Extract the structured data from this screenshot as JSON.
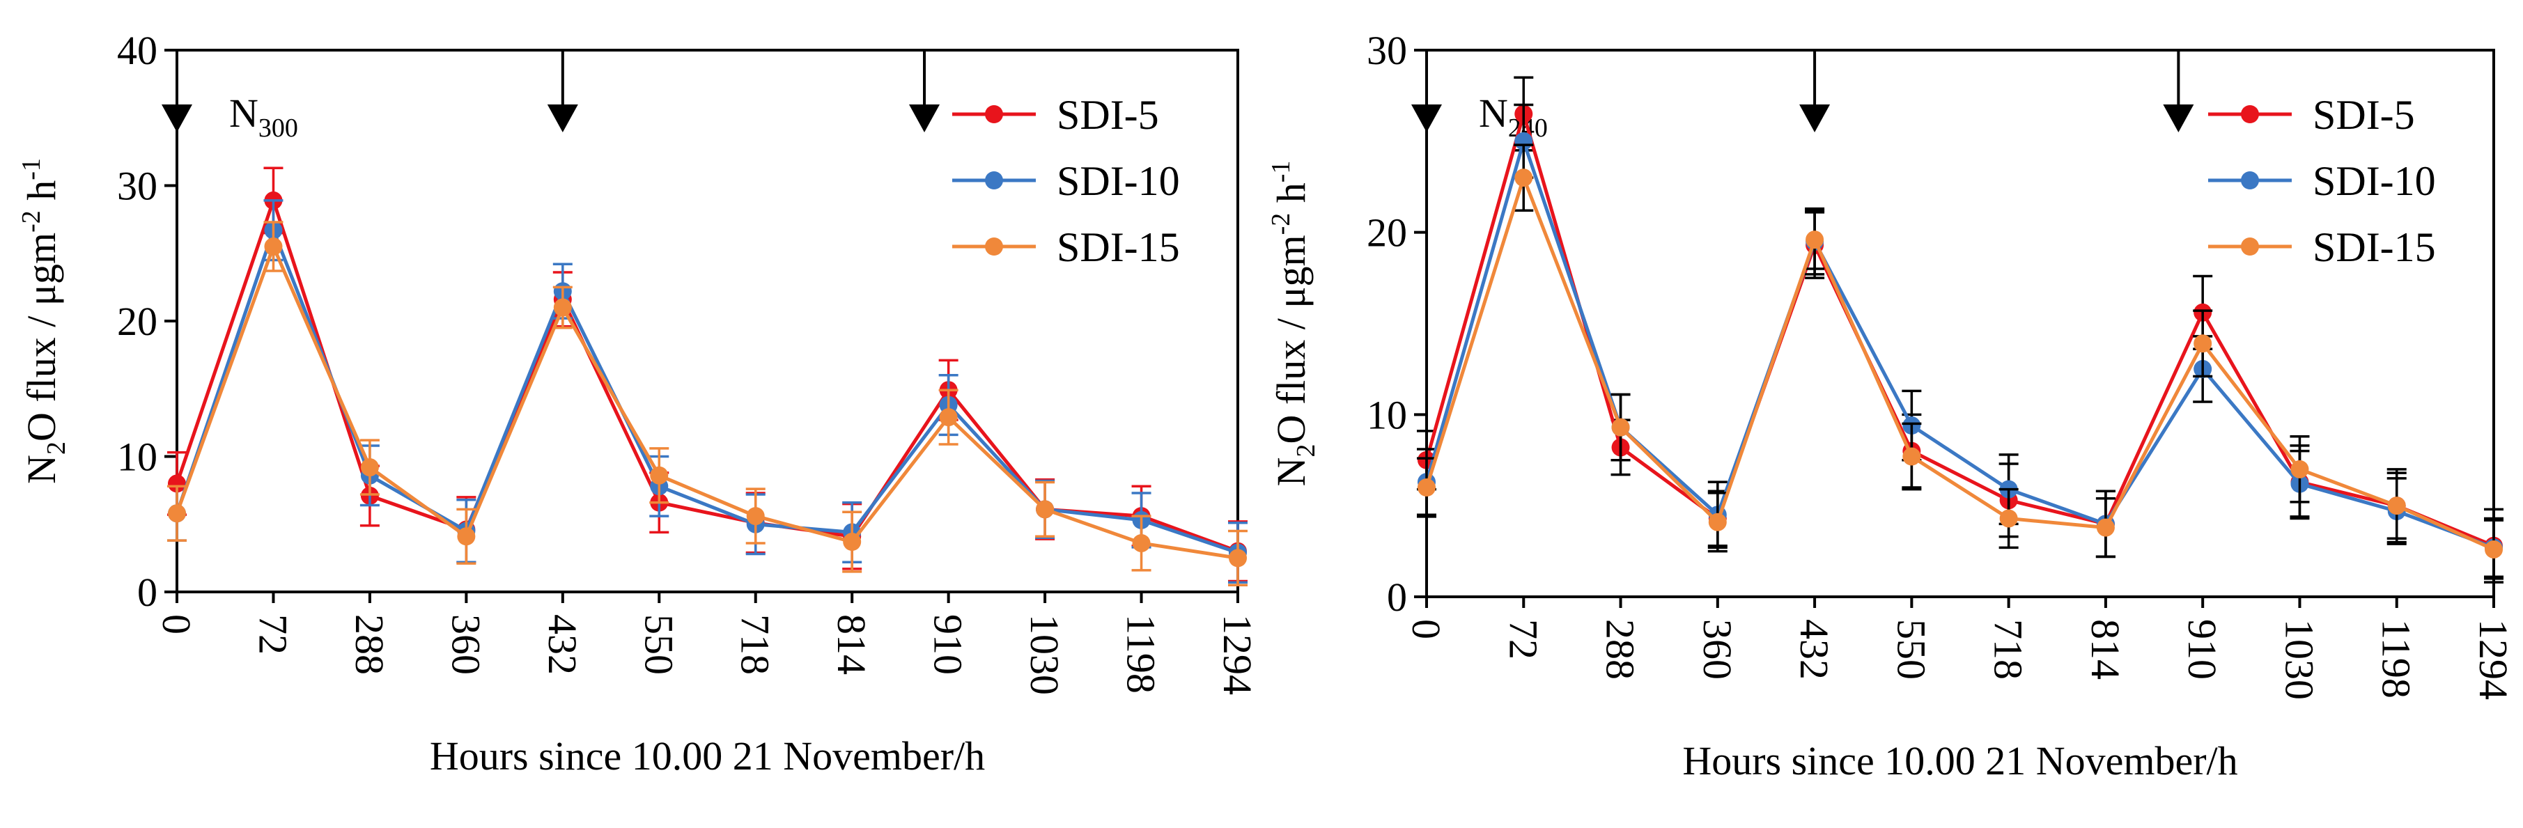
{
  "chart_data": [
    {
      "type": "line",
      "annotation": "N",
      "annotation_sub": "300",
      "ylabel": "flux / μgm",
      "ylabel_prefix": "N",
      "ylabel_prefix_sub": "2",
      "ylabel_prefix_end": "O",
      "ylabel_exp1": "-2",
      "ylabel_mid": " h",
      "ylabel_exp2": "-1",
      "xlabel": "Hours since 10.00 21 November/h",
      "categories": [
        "0",
        "72",
        "288",
        "360",
        "432",
        "550",
        "718",
        "814",
        "910",
        "1030",
        "1198",
        "1294"
      ],
      "ylim": [
        0,
        40
      ],
      "yticks": [
        0,
        10,
        20,
        30,
        40
      ],
      "arrows_at_index": [
        0,
        4,
        7.75
      ],
      "legend_position": "top-right",
      "series": [
        {
          "name": "SDI-5",
          "color": "#e8141c",
          "values": [
            8.0,
            28.9,
            7.1,
            4.6,
            21.6,
            6.6,
            5.1,
            4.1,
            14.9,
            6.1,
            5.6,
            3.0
          ],
          "errors": [
            2.3,
            2.4,
            2.2,
            2.4,
            2.0,
            2.2,
            2.2,
            2.4,
            2.2,
            2.2,
            2.2,
            2.2
          ]
        },
        {
          "name": "SDI-10",
          "color": "#3b78c4",
          "values": [
            5.8,
            26.7,
            8.6,
            4.5,
            22.2,
            7.8,
            5.0,
            4.4,
            13.8,
            6.1,
            5.3,
            2.9
          ],
          "errors": [
            2.0,
            2.2,
            2.2,
            2.3,
            2.0,
            2.2,
            2.2,
            2.2,
            2.2,
            2.1,
            2.0,
            2.2
          ]
        },
        {
          "name": "SDI-15",
          "color": "#f0883a",
          "values": [
            5.8,
            25.5,
            9.2,
            4.1,
            21.0,
            8.6,
            5.6,
            3.7,
            12.9,
            6.1,
            3.6,
            2.5
          ],
          "errors": [
            2.0,
            1.8,
            2.0,
            2.0,
            1.5,
            2.0,
            2.0,
            2.2,
            2.0,
            2.0,
            2.0,
            2.0
          ]
        }
      ]
    },
    {
      "type": "line",
      "annotation": "N",
      "annotation_sub": "240",
      "ylabel": "flux / μgm",
      "ylabel_prefix": "N",
      "ylabel_prefix_sub": "2",
      "ylabel_prefix_end": "O",
      "ylabel_exp1": "-2",
      "ylabel_mid": " h",
      "ylabel_exp2": "-1",
      "xlabel": "Hours since 10.00 21 November/h",
      "categories": [
        "0",
        "72",
        "288",
        "360",
        "432",
        "550",
        "718",
        "814",
        "910",
        "1030",
        "1198",
        "1294"
      ],
      "ylim": [
        0,
        30
      ],
      "yticks": [
        0,
        10,
        20,
        30
      ],
      "arrows_at_index": [
        0,
        4,
        7.75
      ],
      "legend_position": "top-right",
      "series": [
        {
          "name": "SDI-5",
          "color": "#e8141c",
          "values": [
            7.5,
            26.5,
            8.2,
            4.3,
            19.3,
            8.0,
            5.3,
            4.0,
            15.6,
            6.3,
            5.0,
            2.8
          ],
          "errors": [
            1.6,
            2.0,
            1.5,
            1.5,
            1.8,
            2.0,
            2.0,
            1.8,
            2.0,
            2.0,
            2.0,
            2.0
          ]
        },
        {
          "name": "SDI-10",
          "color": "#3b78c4",
          "values": [
            6.3,
            25.0,
            9.3,
            4.5,
            19.5,
            9.4,
            5.9,
            4.0,
            12.5,
            6.2,
            4.7,
            2.7
          ],
          "errors": [
            1.8,
            2.0,
            1.8,
            1.8,
            1.8,
            1.9,
            1.9,
            1.8,
            1.8,
            1.8,
            1.8,
            1.6
          ]
        },
        {
          "name": "SDI-15",
          "color": "#f0883a",
          "values": [
            6.0,
            23.0,
            9.3,
            4.1,
            19.6,
            7.7,
            4.3,
            3.8,
            13.9,
            7.0,
            5.0,
            2.6
          ],
          "errors": [
            1.6,
            1.8,
            1.8,
            1.6,
            1.6,
            1.8,
            1.6,
            1.6,
            1.8,
            1.8,
            1.8,
            1.6
          ]
        }
      ]
    }
  ]
}
